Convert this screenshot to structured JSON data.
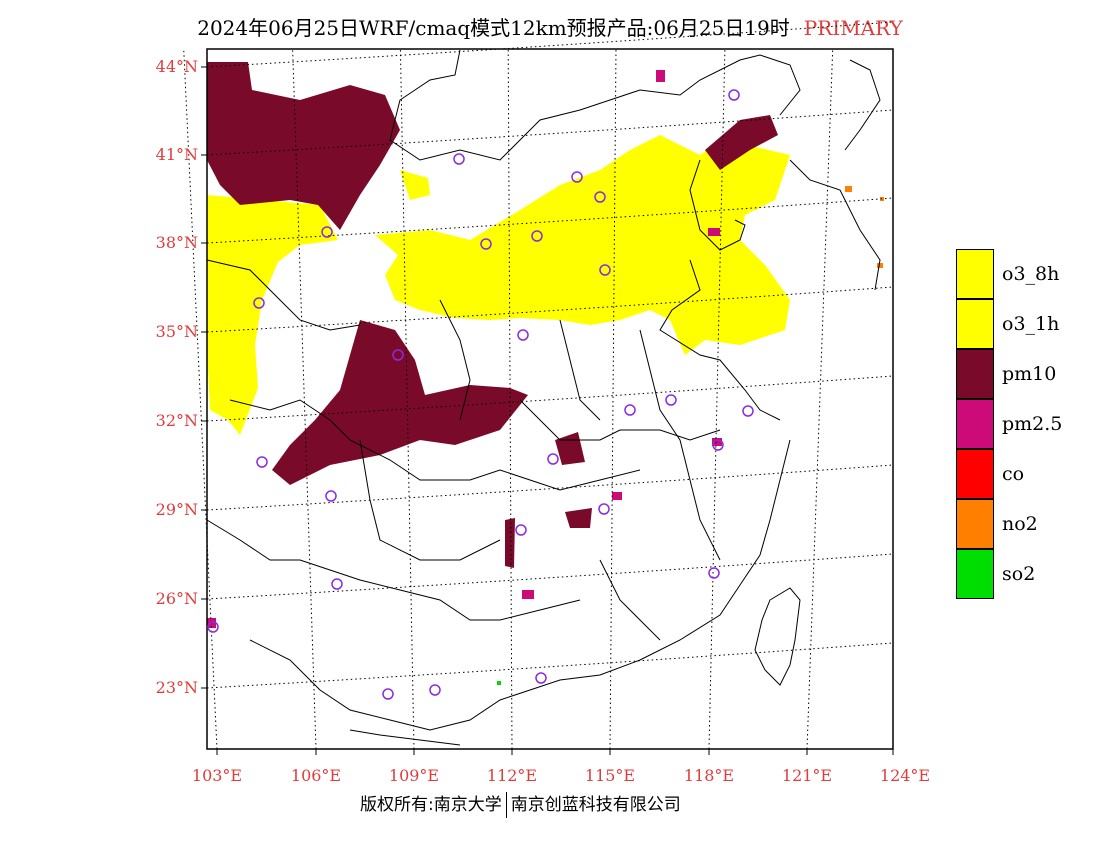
{
  "title": {
    "main": "2024年06月25日WRF/cmaq模式12km预报产品:06月25日19时",
    "tag": "PRIMARY"
  },
  "map": {
    "lon_ticks": [
      "103°E",
      "106°E",
      "109°E",
      "112°E",
      "115°E",
      "118°E",
      "121°E",
      "124°E"
    ],
    "lat_ticks": [
      "44°N",
      "41°N",
      "38°N",
      "35°N",
      "32°N",
      "29°N",
      "26°N",
      "23°N"
    ],
    "colors": {
      "o3": "#ffff00",
      "pm10": "#7a0a2a",
      "pm25": "#cc0a78",
      "co": "#ff0000",
      "no2": "#ff8000",
      "so2": "#00dd00",
      "label": "#e03c3c",
      "station": "#8a2be2"
    },
    "station_count": 26
  },
  "legend": {
    "items": [
      {
        "label": "o3_8h",
        "color": "#ffff00"
      },
      {
        "label": "o3_1h",
        "color": "#ffff00"
      },
      {
        "label": "pm10",
        "color": "#7a0a2a"
      },
      {
        "label": "pm2.5",
        "color": "#cc0a78"
      },
      {
        "label": "co",
        "color": "#ff0000"
      },
      {
        "label": "no2",
        "color": "#ff8000"
      },
      {
        "label": "so2",
        "color": "#00dd00"
      }
    ]
  },
  "footer": {
    "left": "版权所有:南京大学",
    "right": "南京创蓝科技有限公司"
  }
}
